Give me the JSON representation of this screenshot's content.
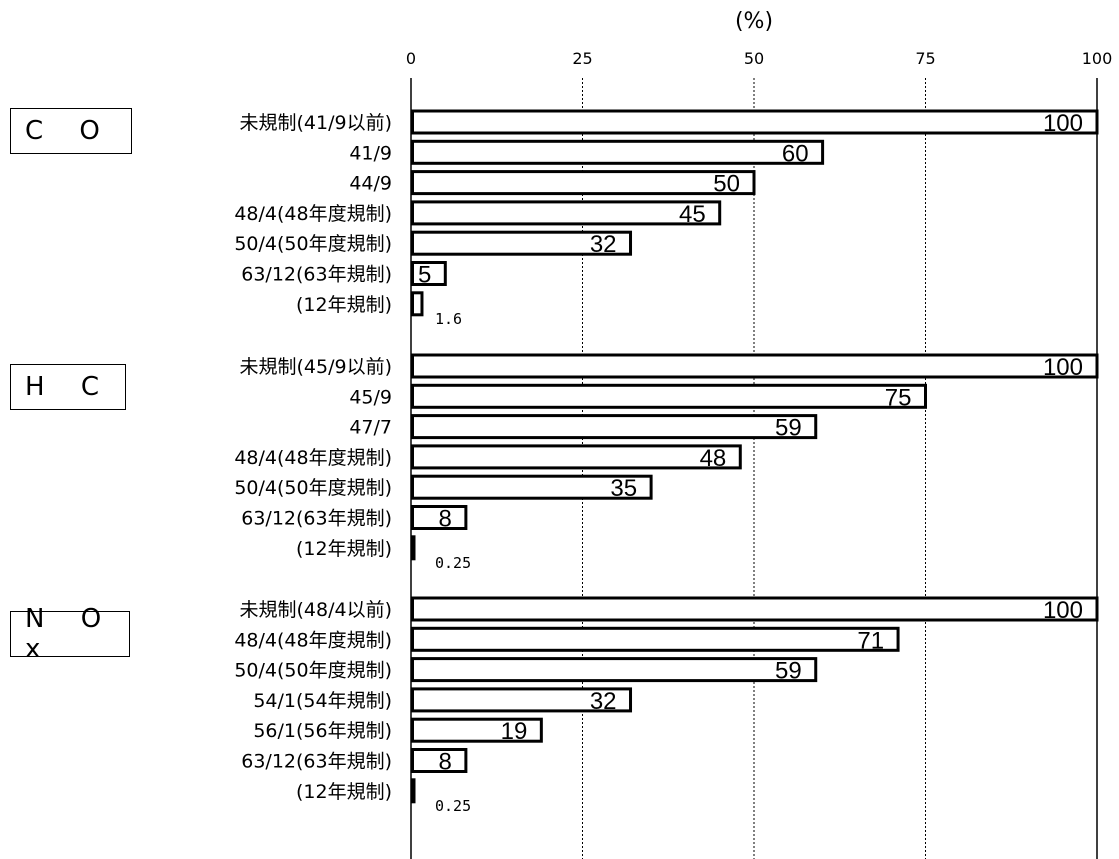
{
  "chart_data": {
    "type": "bar",
    "orientation": "horizontal",
    "unit": "(%)",
    "xlim": [
      0,
      100
    ],
    "ticks": [
      0,
      25,
      50,
      75,
      100
    ],
    "grid": "vertical dotted at 25, 50, 75",
    "groups": [
      {
        "name": "C O",
        "categories": [
          "未規制(41/9以前)",
          "41/9",
          "44/9",
          "48/4(48年度規制)",
          "50/4(50年度規制)",
          "63/12(63年規制)",
          "(12年規制)"
        ],
        "values": [
          100,
          60,
          50,
          45,
          32,
          5,
          1.6
        ],
        "value_labels": [
          "100",
          "60",
          "50",
          "45",
          "32",
          "5",
          "1.6"
        ]
      },
      {
        "name": "H C",
        "categories": [
          "未規制(45/9以前)",
          "45/9",
          "47/7",
          "48/4(48年度規制)",
          "50/4(50年度規制)",
          "63/12(63年規制)",
          "(12年規制)"
        ],
        "values": [
          100,
          75,
          59,
          48,
          35,
          8,
          0.25
        ],
        "value_labels": [
          "100",
          "75",
          "59",
          "48",
          "35",
          "8",
          "0.25"
        ]
      },
      {
        "name": "N O x",
        "categories": [
          "未規制(48/4以前)",
          "48/4(48年度規制)",
          "50/4(50年度規制)",
          "54/1(54年規制)",
          "56/1(56年規制)",
          "63/12(63年規制)",
          "(12年規制)"
        ],
        "values": [
          100,
          71,
          59,
          32,
          19,
          8,
          0.25
        ],
        "value_labels": [
          "100",
          "71",
          "59",
          "32",
          "19",
          "8",
          "0.25"
        ]
      }
    ]
  }
}
